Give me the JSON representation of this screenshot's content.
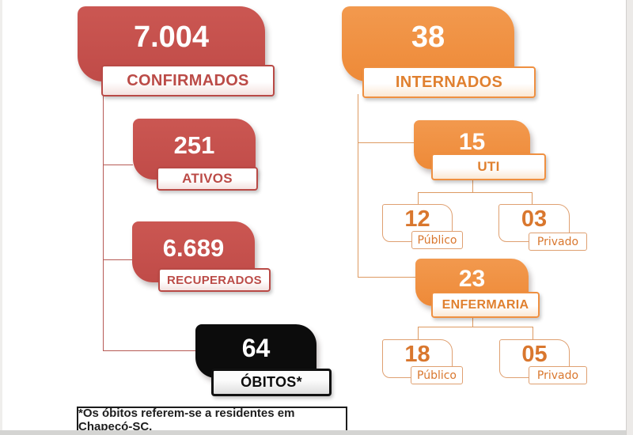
{
  "colors": {
    "card_red": "#c04b48",
    "card_orange": "#ee8a38",
    "card_black": "#0c0c0c",
    "text_red": "#bb4b47",
    "text_orange": "#e0802f",
    "line_red": "#b65a55",
    "line_orange": "#dd9a62"
  },
  "left_tree": {
    "root": {
      "value": "7.004",
      "label": "CONFIRMADOS"
    },
    "ativos": {
      "value": "251",
      "label": "ATIVOS"
    },
    "recuperados": {
      "value": "6.689",
      "label": "RECUPERADOS"
    },
    "obitos": {
      "value": "64",
      "label": "ÓBITOS*"
    }
  },
  "right_tree": {
    "root": {
      "value": "38",
      "label": "INTERNADOS"
    },
    "uti": {
      "value": "15",
      "label": "UTI",
      "publico": {
        "value": "12",
        "label": "Público"
      },
      "privado": {
        "value": "03",
        "label": "Privado"
      }
    },
    "enfermaria": {
      "value": "23",
      "label": "ENFERMARIA",
      "publico": {
        "value": "18",
        "label": "Público"
      },
      "privado": {
        "value": "05",
        "label": "Privado"
      }
    }
  },
  "footnote": "*Os óbitos referem-se a residentes em Chapecó-SC."
}
